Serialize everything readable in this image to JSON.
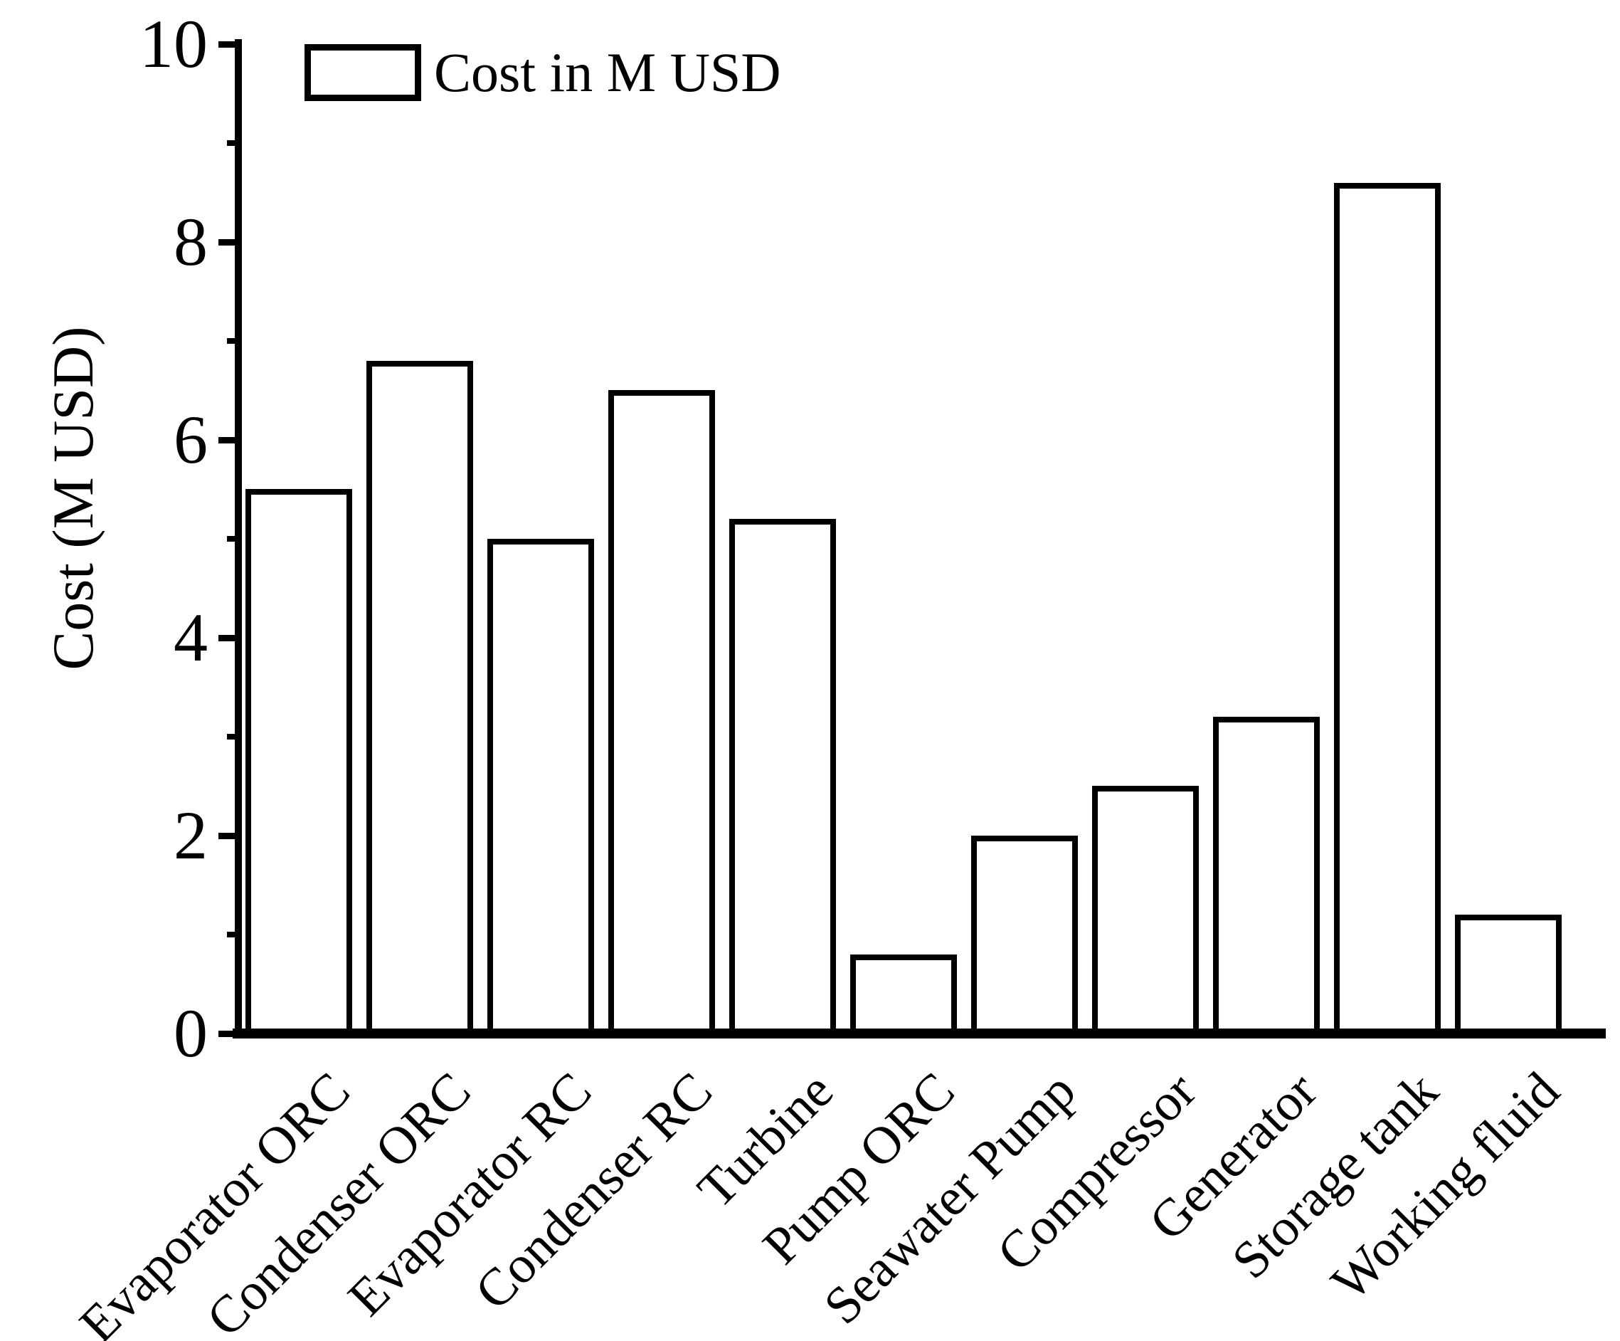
{
  "figure": {
    "background_color": "#ffffff",
    "ink_color": "#000000"
  },
  "legend": {
    "label": "Cost in M USD",
    "swatch": "white-rect-black-border"
  },
  "y_axis": {
    "title": "Cost (M USD)",
    "range": [
      0,
      10
    ],
    "major_ticks": [
      0,
      2,
      4,
      6,
      8,
      10
    ],
    "minor_ticks": [
      1,
      3,
      5,
      7,
      9
    ]
  },
  "chart_data": {
    "type": "bar",
    "title": "",
    "series_name": "Cost in M USD",
    "categories": [
      "Evaporator ORC",
      "Condenser ORC",
      "Evaporator RC",
      "Condenser RC",
      "Turbine",
      "Pump ORC",
      "Seawater Pump",
      "Compressor",
      "Generator",
      "Storage tank",
      "Working fluid"
    ],
    "values": [
      5.5,
      6.8,
      5.0,
      6.5,
      5.2,
      0.8,
      2.0,
      2.5,
      3.2,
      8.6,
      1.2
    ],
    "xlabel": "",
    "ylabel": "Cost (M USD)",
    "ylim": [
      0,
      10
    ],
    "bar_fill": "#ffffff",
    "bar_edge": "#000000",
    "grid": false,
    "legend_position": "upper-left",
    "x_label_rotation_deg": 45
  }
}
